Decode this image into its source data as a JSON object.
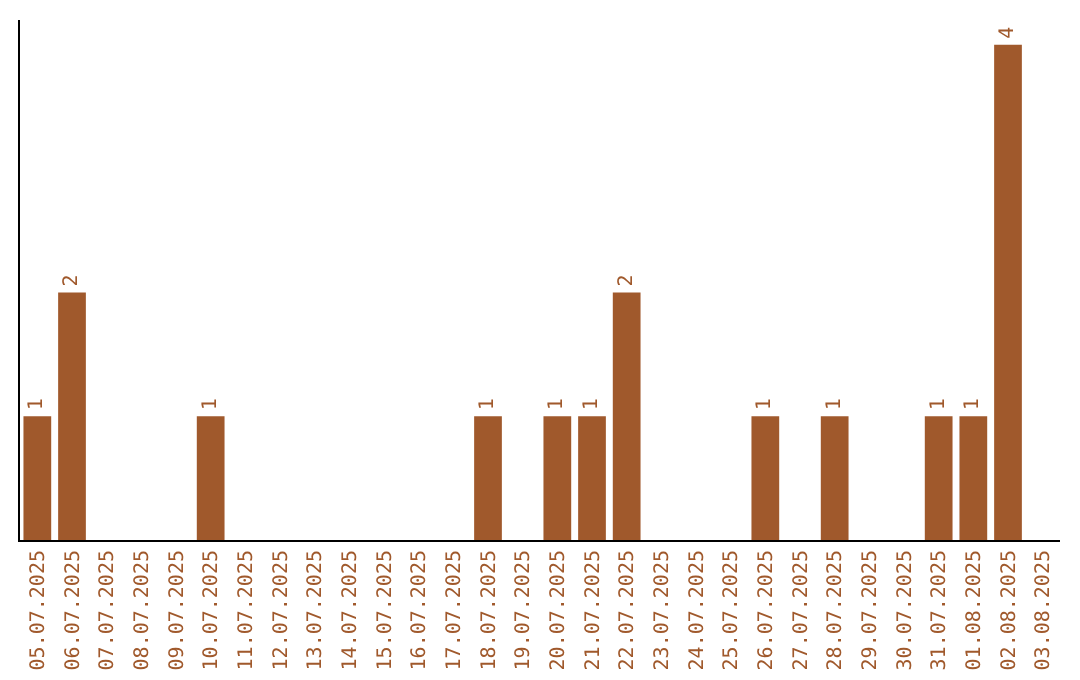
{
  "chart_data": {
    "type": "bar",
    "categories": [
      "05.07.2025",
      "06.07.2025",
      "07.07.2025",
      "08.07.2025",
      "09.07.2025",
      "10.07.2025",
      "11.07.2025",
      "12.07.2025",
      "13.07.2025",
      "14.07.2025",
      "15.07.2025",
      "16.07.2025",
      "17.07.2025",
      "18.07.2025",
      "19.07.2025",
      "20.07.2025",
      "21.07.2025",
      "22.07.2025",
      "23.07.2025",
      "24.07.2025",
      "25.07.2025",
      "26.07.2025",
      "27.07.2025",
      "28.07.2025",
      "29.07.2025",
      "30.07.2025",
      "31.07.2025",
      "01.08.2025",
      "02.08.2025",
      "03.08.2025"
    ],
    "values": [
      1,
      2,
      0,
      0,
      0,
      1,
      0,
      0,
      0,
      0,
      0,
      0,
      0,
      1,
      0,
      1,
      1,
      2,
      0,
      0,
      0,
      1,
      0,
      1,
      0,
      0,
      1,
      1,
      4,
      0
    ],
    "value_labels": [
      "1",
      "2",
      null,
      null,
      null,
      "1",
      null,
      null,
      null,
      null,
      null,
      null,
      null,
      "1",
      null,
      "1",
      "1",
      "2",
      null,
      null,
      null,
      "1",
      null,
      "1",
      null,
      null,
      "1",
      "1",
      "4",
      null
    ],
    "color": "#a0592c",
    "ylim": [
      0,
      4.2
    ],
    "tick_labels": "x",
    "grid": false,
    "legend": false
  }
}
